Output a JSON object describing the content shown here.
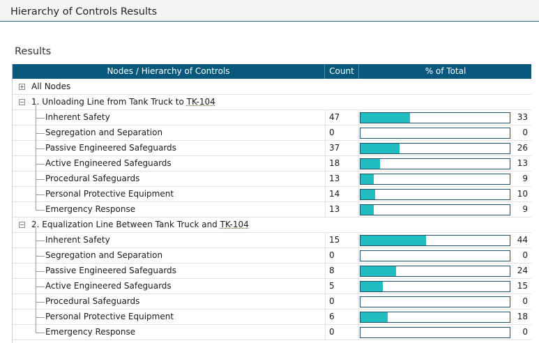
{
  "window": {
    "title": "Hierarchy of Controls Results"
  },
  "section": {
    "title": "Results"
  },
  "table": {
    "headers": {
      "node": "Nodes / Hierarchy of Controls",
      "count": "Count",
      "pct": "% of Total"
    },
    "all_nodes": {
      "label": "All Nodes",
      "expander": "+"
    },
    "groups": [
      {
        "label_prefix": "1. Unloading Line from Tank Truck to ",
        "label_tag": "TK-104",
        "expander": "−",
        "items": [
          {
            "label": "Inherent Safety",
            "count": "47",
            "pct": "33",
            "fill": 0.33
          },
          {
            "label": "Segregation and Separation",
            "count": "0",
            "pct": "0",
            "fill": 0
          },
          {
            "label": "Passive Engineered Safeguards",
            "count": "37",
            "pct": "26",
            "fill": 0.26
          },
          {
            "label": "Active Engineered Safeguards",
            "count": "18",
            "pct": "13",
            "fill": 0.13
          },
          {
            "label": "Procedural Safeguards",
            "count": "13",
            "pct": "9",
            "fill": 0.09
          },
          {
            "label": "Personal Protective Equipment",
            "count": "14",
            "pct": "10",
            "fill": 0.1
          },
          {
            "label": "Emergency Response",
            "count": "13",
            "pct": "9",
            "fill": 0.09
          }
        ]
      },
      {
        "label_prefix": "2. Equalization Line Between Tank Truck and ",
        "label_tag": "TK-104",
        "expander": "−",
        "items": [
          {
            "label": "Inherent Safety",
            "count": "15",
            "pct": "44",
            "fill": 0.44
          },
          {
            "label": "Segregation and Separation",
            "count": "0",
            "pct": "0",
            "fill": 0
          },
          {
            "label": "Passive Engineered Safeguards",
            "count": "8",
            "pct": "24",
            "fill": 0.24
          },
          {
            "label": "Active Engineered Safeguards",
            "count": "5",
            "pct": "15",
            "fill": 0.15
          },
          {
            "label": "Procedural Safeguards",
            "count": "0",
            "pct": "0",
            "fill": 0
          },
          {
            "label": "Personal Protective Equipment",
            "count": "6",
            "pct": "18",
            "fill": 0.18
          },
          {
            "label": "Emergency Response",
            "count": "0",
            "pct": "0",
            "fill": 0
          }
        ]
      }
    ]
  },
  "colors": {
    "header_bg": "#08587e",
    "bar_fill": "#20bcc0",
    "bar_border": "#1f4f6e"
  },
  "icons": {
    "expand": "plus-box-icon",
    "collapse": "minus-box-icon"
  }
}
